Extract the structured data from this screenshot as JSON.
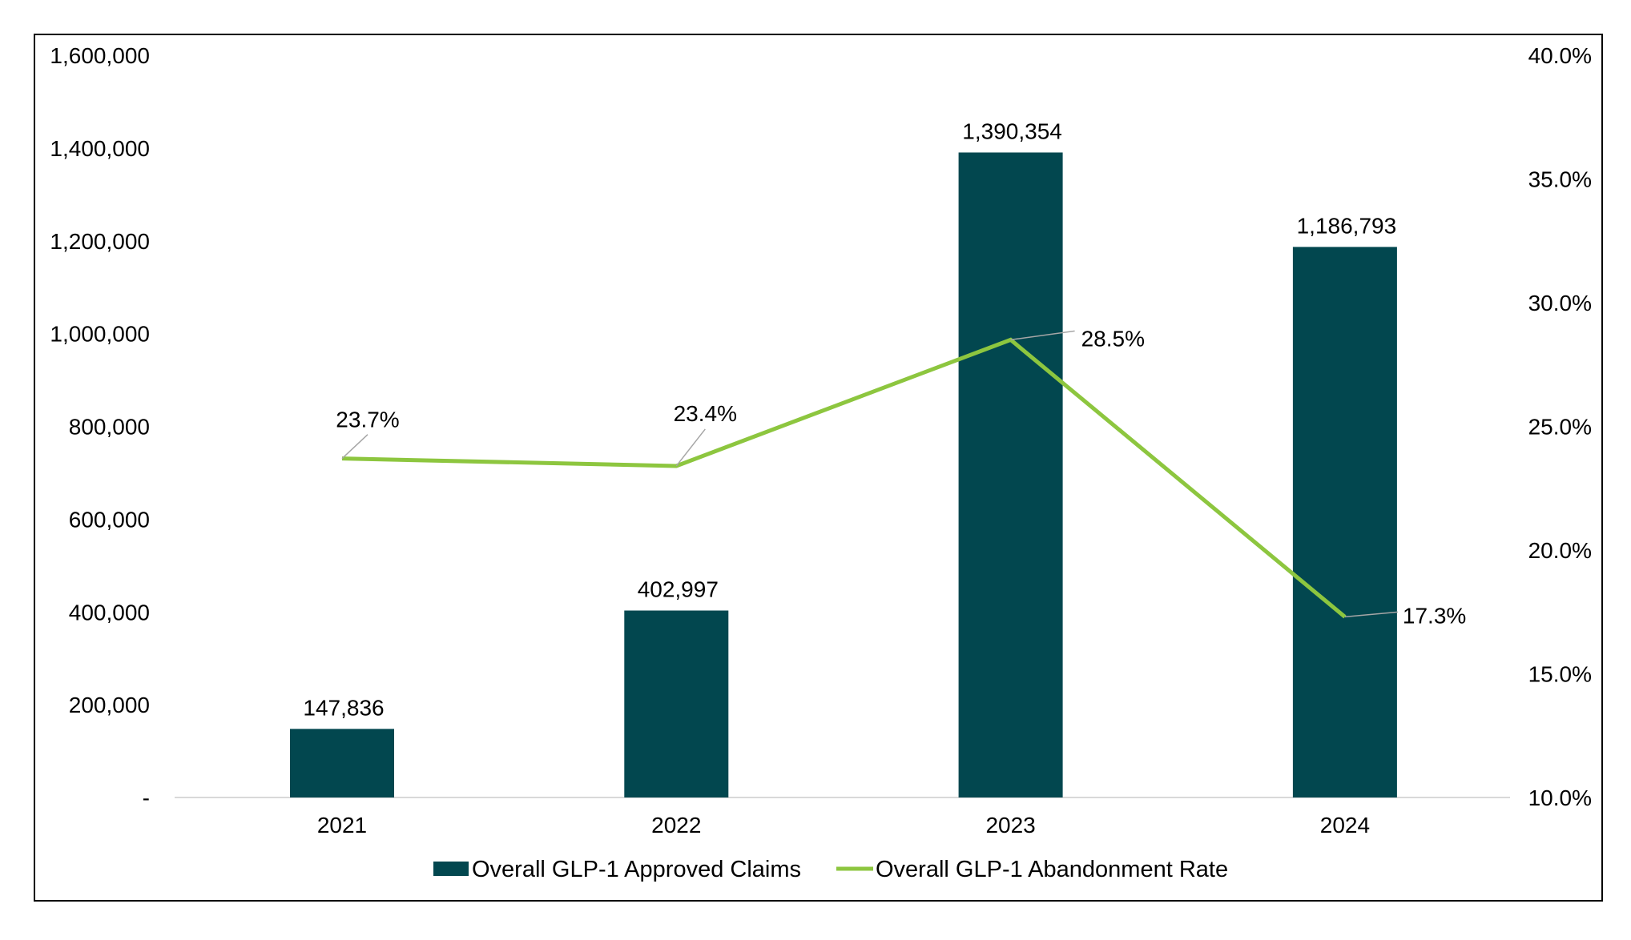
{
  "chart_data": {
    "type": "bar+line",
    "title": "",
    "categories": [
      "2021",
      "2022",
      "2023",
      "2024"
    ],
    "series": [
      {
        "name": "Overall GLP-1 Approved Claims",
        "type": "bar",
        "axis": "left",
        "color": "#02474F",
        "values": [
          147836,
          402997,
          1390354,
          1186793
        ],
        "labels": [
          "147,836",
          "402,997",
          "1,390,354",
          "1,186,793"
        ]
      },
      {
        "name": "Overall GLP-1 Abandonment Rate",
        "type": "line",
        "axis": "right",
        "color": "#8DC63F",
        "values": [
          23.7,
          23.4,
          28.5,
          17.3
        ],
        "labels": [
          "23.7%",
          "23.4%",
          "28.5%",
          "17.3%"
        ]
      }
    ],
    "left_axis": {
      "min": 0,
      "max": 1600000,
      "tick_values": [
        0,
        200000,
        400000,
        600000,
        800000,
        1000000,
        1200000,
        1400000,
        1600000
      ],
      "tick_labels": [
        "-",
        "200,000",
        "400,000",
        "600,000",
        "800,000",
        "1,000,000",
        "1,200,000",
        "1,400,000",
        "1,600,000"
      ]
    },
    "right_axis": {
      "min": 10,
      "max": 40,
      "tick_values": [
        10,
        15,
        20,
        25,
        30,
        35,
        40
      ],
      "tick_labels": [
        "10.0%",
        "15.0%",
        "20.0%",
        "25.0%",
        "30.0%",
        "35.0%",
        "40.0%"
      ]
    },
    "legend": {
      "position": "bottom",
      "items": [
        "Overall GLP-1 Approved Claims",
        "Overall GLP-1 Abandonment Rate"
      ]
    },
    "gridlines": false
  }
}
